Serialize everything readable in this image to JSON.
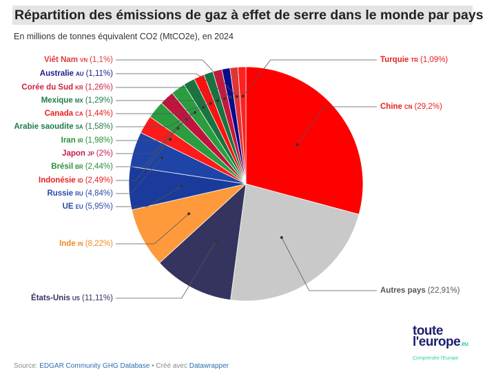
{
  "title": "Répartition des émissions de gaz à effet de serre dans le monde par pays",
  "subtitle": "En millions de tonnes équivalent CO2 (MtCO2e), en 2024",
  "source": {
    "prefix": "Source: ",
    "link": "EDGAR Community GHG Database",
    "mid": " • Créé avec ",
    "tool": "Datawrapper"
  },
  "logo": {
    "line1": "toute",
    "line2": "l'europe",
    "suffix": ".eu",
    "tagline": "Comprendre l'Europe"
  },
  "chart_data": {
    "type": "pie",
    "title": "Répartition des émissions de gaz à effet de serre dans le monde par pays",
    "slices": [
      {
        "name": "Chine",
        "code": "CN",
        "value": 29.2,
        "label": "(29,2%)",
        "color": "#ff0000",
        "text_color": "#e62020"
      },
      {
        "name": "Autres pays",
        "code": "",
        "value": 22.91,
        "label": "(22,91%)",
        "color": "#c9c9c9",
        "text_color": "#555555"
      },
      {
        "name": "États-Unis",
        "code": "US",
        "value": 11.11,
        "label": "(11,11%)",
        "color": "#34345f",
        "text_color": "#34345f"
      },
      {
        "name": "Inde",
        "code": "IN",
        "value": 8.22,
        "label": "(8,22%)",
        "color": "#ff9a3c",
        "text_color": "#f08a20"
      },
      {
        "name": "UE",
        "code": "EU",
        "value": 5.95,
        "label": "(5,95%)",
        "color": "#1a3b9c",
        "text_color": "#2a4aa8"
      },
      {
        "name": "Russie",
        "code": "RU",
        "value": 4.84,
        "label": "(4,84%)",
        "color": "#1e44a8",
        "text_color": "#2a4aa8"
      },
      {
        "name": "Indonésie",
        "code": "ID",
        "value": 2.49,
        "label": "(2,49%)",
        "color": "#ff1a1a",
        "text_color": "#e62020"
      },
      {
        "name": "Brésil",
        "code": "BR",
        "value": 2.44,
        "label": "(2,44%)",
        "color": "#2a9e3f",
        "text_color": "#2a8f3a"
      },
      {
        "name": "Japon",
        "code": "JP",
        "value": 2,
        "label": "(2%)",
        "color": "#c0143c",
        "text_color": "#c41d4a"
      },
      {
        "name": "Iran",
        "code": "IR",
        "value": 1.98,
        "label": "(1,98%)",
        "color": "#2a9e3f",
        "text_color": "#2a8f3a"
      },
      {
        "name": "Arabie saoudite",
        "code": "SA",
        "value": 1.58,
        "label": "(1,58%)",
        "color": "#17753f",
        "text_color": "#1d7a4a"
      },
      {
        "name": "Canada",
        "code": "CA",
        "value": 1.44,
        "label": "(1,44%)",
        "color": "#ff1010",
        "text_color": "#e62020"
      },
      {
        "name": "Mexique",
        "code": "MX",
        "value": 1.29,
        "label": "(1,29%)",
        "color": "#17753f",
        "text_color": "#1d7a4a"
      },
      {
        "name": "Corée du Sud",
        "code": "KR",
        "value": 1.26,
        "label": "(1,26%)",
        "color": "#c8163c",
        "text_color": "#d0203c"
      },
      {
        "name": "Australie",
        "code": "AU",
        "value": 1.11,
        "label": "(1,11%)",
        "color": "#0a0a8c",
        "text_color": "#1a1a8c"
      },
      {
        "name": "Viêt Nam",
        "code": "VN",
        "value": 1.1,
        "label": "(1,1%)",
        "color": "#e03535",
        "text_color": "#e03a3a"
      },
      {
        "name": "Turquie",
        "code": "TR",
        "value": 1.09,
        "label": "(1,09%)",
        "color": "#ff2020",
        "text_color": "#e62020"
      }
    ]
  }
}
